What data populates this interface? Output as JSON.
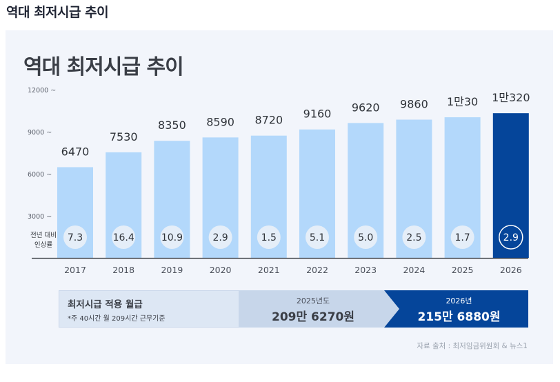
{
  "page": {
    "outer_title": "역대 최저시급 추이",
    "source": "자료 출처 : 최저임금위원회 & 뉴스1"
  },
  "colors": {
    "bar_light": "#b3d8fb",
    "bar_highlight": "#05459a",
    "badge_bg": "#e5eef8",
    "axis_text": "#5a5f6a",
    "value_text": "#2f3339"
  },
  "chart_data": {
    "type": "bar",
    "title": "역대 최저시급 추이",
    "categories": [
      "2017",
      "2018",
      "2019",
      "2020",
      "2021",
      "2022",
      "2023",
      "2024",
      "2025",
      "2026"
    ],
    "values": [
      6470,
      7530,
      8350,
      8590,
      8720,
      9160,
      9620,
      9860,
      10030,
      10320
    ],
    "value_labels": [
      "6470",
      "7530",
      "8350",
      "8590",
      "8720",
      "9160",
      "9620",
      "9860",
      "1만30",
      "1만320"
    ],
    "growth_label": "전년 대비\n인상률",
    "growth_rates": [
      "7.3",
      "16.4",
      "10.9",
      "2.9",
      "1.5",
      "5.1",
      "5.0",
      "2.5",
      "1.7",
      "2.9"
    ],
    "y_ticks": [
      3000,
      6000,
      9000,
      12000
    ],
    "y_tick_labels": [
      "3000 ~",
      "6000 ~",
      "9000 ~",
      "12000 ~"
    ],
    "ylim": [
      0,
      12000
    ],
    "highlight_index": 9,
    "grid": false
  },
  "summary": {
    "label": "최저시급 적용 월급",
    "note": "*주 40시간 월 209시간 근무기준",
    "year_2025": "2025년도",
    "value_2025": "209만 6270원",
    "year_2026": "2026년",
    "value_2026": "215만 6880원"
  }
}
